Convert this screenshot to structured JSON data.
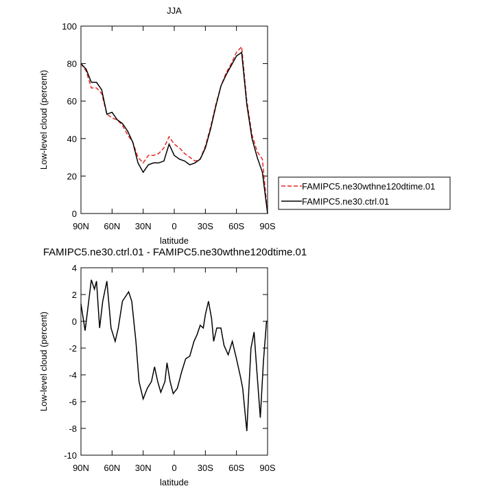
{
  "chart_data": [
    {
      "type": "line",
      "title": "JJA",
      "xlabel": "latitude",
      "ylabel": "Low-level cloud (percent)",
      "x": [
        90,
        85,
        80,
        75,
        70,
        65,
        60,
        55,
        50,
        45,
        40,
        35,
        30,
        25,
        20,
        15,
        10,
        5,
        0,
        -5,
        -10,
        -15,
        -20,
        -25,
        -30,
        -35,
        -40,
        -45,
        -50,
        -55,
        -60,
        -65,
        -70,
        -75,
        -80,
        -85,
        -90
      ],
      "series": [
        {
          "name": "FAMIPC5.ne30wthne120dtime.01",
          "color": "#e8251f",
          "dash": true,
          "values": [
            80,
            76,
            67,
            67,
            64,
            53,
            51,
            50,
            47,
            42,
            38,
            30,
            27,
            31,
            31,
            32,
            35,
            41,
            37,
            35,
            32,
            30,
            28,
            29,
            36,
            46,
            58,
            68,
            75,
            80,
            86,
            89,
            60,
            42,
            33,
            29,
            0
          ]
        },
        {
          "name": "FAMIPC5.ne30.ctrl.01",
          "color": "#000000",
          "dash": false,
          "values": [
            80,
            77,
            70,
            70,
            66,
            53,
            54,
            50,
            48,
            44,
            38,
            27,
            22,
            26,
            27,
            27,
            28,
            37,
            31,
            29,
            28,
            26,
            27,
            29,
            35,
            45,
            57,
            68,
            74,
            79,
            84,
            86,
            58,
            40,
            30,
            22,
            0
          ]
        }
      ],
      "xlim": [
        90,
        -90
      ],
      "xticks": [
        {
          "value": 90,
          "label": "90N"
        },
        {
          "value": 60,
          "label": "60N"
        },
        {
          "value": 30,
          "label": "30N"
        },
        0,
        {
          "value": -30,
          "label": "30S"
        },
        {
          "value": -60,
          "label": "60S"
        },
        {
          "value": -90,
          "label": "90S"
        }
      ],
      "ylim": [
        0,
        100
      ],
      "yticks": [
        0,
        20,
        40,
        60,
        80,
        100
      ],
      "legend": "right"
    },
    {
      "type": "line",
      "title": "FAMIPC5.ne30.ctrl.01 - FAMIPC5.ne30wthne120dtime.01",
      "xlabel": "latitude",
      "ylabel": "Low-level cloud (percent)",
      "x": [
        90,
        86,
        80,
        77,
        75,
        72,
        69,
        65,
        61,
        57,
        54,
        50,
        44,
        41,
        37,
        34,
        30,
        26,
        22,
        19,
        16,
        13,
        9,
        7,
        4,
        1,
        -3,
        -7,
        -11,
        -15,
        -19,
        -22,
        -25,
        -28,
        -30,
        -33,
        -36,
        -38,
        -41,
        -45,
        -48,
        -52,
        -56,
        -60,
        -64,
        -66,
        -70,
        -72,
        -74,
        -77,
        -79,
        -83,
        -86,
        -89,
        -90
      ],
      "values": [
        1.3,
        -0.7,
        3.1,
        2.4,
        3,
        -0.5,
        1.5,
        3,
        -0.5,
        -1.5,
        -0.5,
        1.5,
        2.2,
        1.5,
        -1.5,
        -4.5,
        -5.8,
        -5,
        -4.5,
        -3.4,
        -4.5,
        -5.3,
        -4.5,
        -3.1,
        -4.5,
        -5.4,
        -5,
        -3.8,
        -2.8,
        -2.6,
        -1.5,
        -1,
        -0.3,
        -0.5,
        0.5,
        1.5,
        0.2,
        -1.5,
        -0.5,
        -0.5,
        -1.8,
        -2.5,
        -1.5,
        -2.8,
        -4.2,
        -5,
        -8.2,
        -5,
        -2,
        -0.8,
        -3,
        -7.2,
        -3,
        0,
        0
      ],
      "color": "#000000",
      "xlim": [
        90,
        -90
      ],
      "xticks": [
        {
          "value": 90,
          "label": "90N"
        },
        {
          "value": 60,
          "label": "60N"
        },
        {
          "value": 30,
          "label": "30N"
        },
        0,
        {
          "value": -30,
          "label": "30S"
        },
        {
          "value": -60,
          "label": "60S"
        },
        {
          "value": -90,
          "label": "90S"
        }
      ],
      "ylim": [
        -10,
        4
      ],
      "yticks": [
        -10,
        -8,
        -6,
        -4,
        -2,
        0,
        2,
        4
      ]
    }
  ]
}
